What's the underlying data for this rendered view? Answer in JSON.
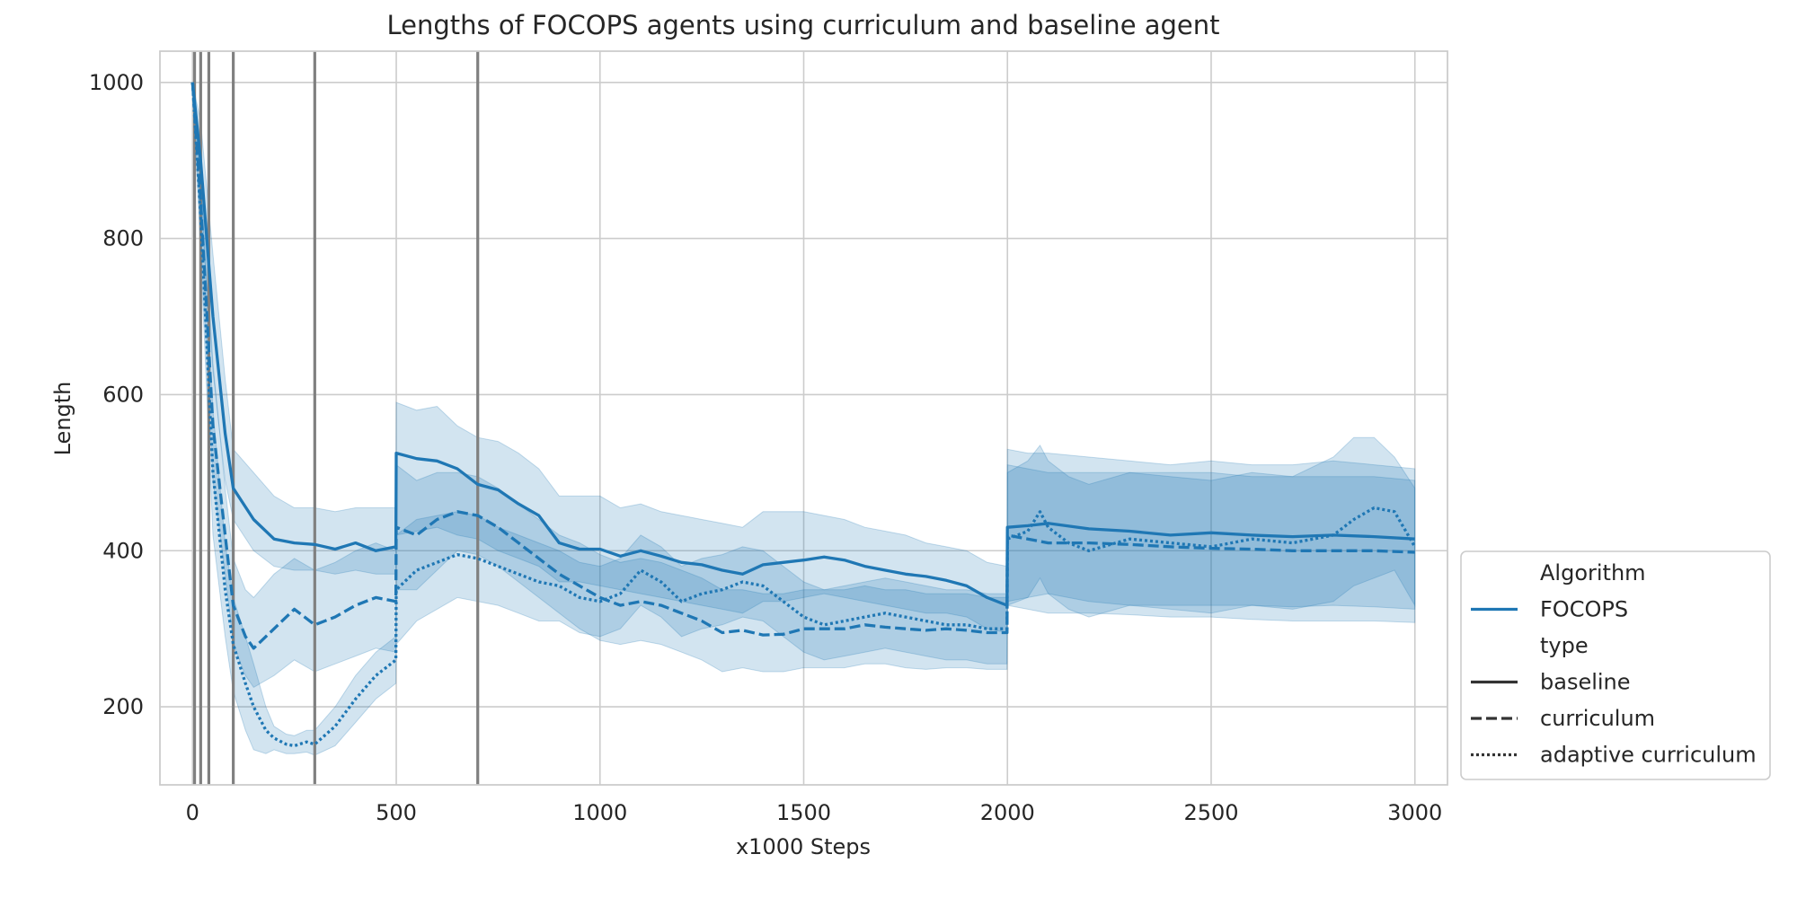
{
  "chart_data": {
    "type": "line",
    "title": "Lengths of FOCOPS agents using curriculum and baseline agent",
    "xlabel": "x1000 Steps",
    "ylabel": "Length",
    "xlim": [
      -80,
      3080
    ],
    "ylim": [
      100,
      1040
    ],
    "xticks": [
      0,
      500,
      1000,
      1500,
      2000,
      2500,
      3000
    ],
    "yticks": [
      200,
      400,
      600,
      800,
      1000
    ],
    "grid": true,
    "color": "#1f77b4",
    "vlines": [
      5,
      20,
      40,
      100,
      300,
      700
    ],
    "vline_color": "#808080",
    "legend": {
      "placement": "right-bottom",
      "entries": [
        {
          "label": "Algorithm",
          "style": "header"
        },
        {
          "label": "FOCOPS",
          "style": "solid-colored"
        },
        {
          "label": "type",
          "style": "header"
        },
        {
          "label": "baseline",
          "style": "solid"
        },
        {
          "label": "curriculum",
          "style": "dashed"
        },
        {
          "label": "adaptive curriculum",
          "style": "dotted"
        }
      ]
    },
    "series": [
      {
        "name": "baseline",
        "dash": "solid",
        "x": [
          0,
          20,
          50,
          80,
          100,
          150,
          200,
          250,
          300,
          350,
          400,
          450,
          499,
          500,
          550,
          600,
          650,
          700,
          750,
          800,
          850,
          900,
          950,
          1000,
          1050,
          1100,
          1150,
          1200,
          1250,
          1300,
          1350,
          1400,
          1450,
          1500,
          1550,
          1600,
          1650,
          1700,
          1750,
          1800,
          1850,
          1900,
          1950,
          1999,
          2000,
          2050,
          2100,
          2200,
          2300,
          2400,
          2500,
          2600,
          2700,
          2800,
          2900,
          3000
        ],
        "y": [
          1000,
          900,
          700,
          550,
          480,
          440,
          415,
          410,
          408,
          402,
          410,
          400,
          405,
          525,
          518,
          515,
          505,
          485,
          478,
          460,
          445,
          410,
          402,
          402,
          393,
          400,
          393,
          385,
          382,
          375,
          370,
          382,
          385,
          388,
          392,
          388,
          380,
          375,
          370,
          367,
          362,
          355,
          340,
          330,
          430,
          432,
          435,
          428,
          425,
          420,
          423,
          420,
          418,
          420,
          418,
          415
        ],
        "upper": [
          1000,
          950,
          780,
          620,
          530,
          500,
          470,
          455,
          455,
          450,
          455,
          455,
          455,
          590,
          580,
          585,
          560,
          545,
          540,
          525,
          505,
          470,
          470,
          470,
          455,
          460,
          450,
          445,
          440,
          435,
          430,
          450,
          450,
          450,
          445,
          440,
          430,
          425,
          420,
          410,
          405,
          400,
          385,
          380,
          530,
          525,
          525,
          520,
          515,
          510,
          515,
          510,
          510,
          515,
          510,
          505
        ],
        "lower": [
          1000,
          850,
          630,
          490,
          440,
          400,
          380,
          375,
          375,
          370,
          375,
          370,
          370,
          420,
          425,
          430,
          420,
          415,
          400,
          390,
          380,
          360,
          360,
          355,
          350,
          345,
          340,
          335,
          330,
          325,
          320,
          335,
          335,
          340,
          345,
          340,
          335,
          330,
          325,
          320,
          320,
          315,
          300,
          295,
          335,
          340,
          345,
          335,
          330,
          330,
          330,
          330,
          328,
          330,
          328,
          325
        ]
      },
      {
        "name": "curriculum",
        "dash": "dashed",
        "x": [
          0,
          20,
          50,
          80,
          100,
          130,
          150,
          200,
          250,
          300,
          350,
          400,
          450,
          499,
          500,
          550,
          600,
          650,
          700,
          750,
          800,
          850,
          900,
          950,
          1000,
          1050,
          1100,
          1150,
          1200,
          1250,
          1300,
          1350,
          1400,
          1450,
          1500,
          1550,
          1600,
          1650,
          1700,
          1750,
          1800,
          1850,
          1900,
          1950,
          1999,
          2000,
          2050,
          2100,
          2200,
          2300,
          2400,
          2500,
          2600,
          2700,
          2800,
          2900,
          3000
        ],
        "y": [
          1000,
          850,
          560,
          420,
          330,
          290,
          275,
          300,
          325,
          305,
          315,
          330,
          340,
          335,
          430,
          420,
          440,
          450,
          445,
          430,
          410,
          390,
          370,
          355,
          340,
          330,
          335,
          330,
          320,
          310,
          295,
          298,
          292,
          293,
          300,
          300,
          300,
          305,
          302,
          300,
          298,
          300,
          298,
          295,
          295,
          420,
          415,
          410,
          410,
          408,
          405,
          403,
          402,
          400,
          400,
          400,
          398
        ],
        "upper": [
          1000,
          900,
          640,
          480,
          390,
          350,
          340,
          370,
          390,
          375,
          385,
          400,
          410,
          400,
          510,
          490,
          500,
          500,
          495,
          480,
          460,
          440,
          420,
          410,
          395,
          385,
          390,
          385,
          375,
          365,
          350,
          350,
          345,
          345,
          350,
          350,
          350,
          355,
          350,
          350,
          345,
          345,
          345,
          340,
          340,
          510,
          505,
          500,
          500,
          500,
          500,
          500,
          495,
          495,
          495,
          495,
          490
        ],
        "lower": [
          1000,
          800,
          490,
          370,
          280,
          240,
          225,
          240,
          260,
          245,
          255,
          265,
          275,
          270,
          350,
          350,
          375,
          400,
          395,
          380,
          360,
          340,
          320,
          300,
          285,
          280,
          285,
          280,
          270,
          260,
          245,
          250,
          245,
          245,
          250,
          250,
          250,
          255,
          255,
          250,
          248,
          250,
          250,
          248,
          248,
          330,
          325,
          320,
          320,
          318,
          315,
          315,
          312,
          310,
          310,
          310,
          308
        ]
      },
      {
        "name": "adaptive curriculum",
        "dash": "dotted",
        "x": [
          0,
          20,
          50,
          80,
          100,
          130,
          150,
          180,
          200,
          230,
          250,
          280,
          300,
          350,
          400,
          450,
          499,
          500,
          550,
          600,
          650,
          700,
          750,
          800,
          850,
          900,
          950,
          1000,
          1050,
          1100,
          1150,
          1200,
          1250,
          1300,
          1350,
          1400,
          1450,
          1500,
          1550,
          1600,
          1650,
          1700,
          1750,
          1800,
          1850,
          1900,
          1950,
          1999,
          2000,
          2050,
          2080,
          2100,
          2150,
          2200,
          2300,
          2400,
          2500,
          2600,
          2700,
          2800,
          2850,
          2900,
          2950,
          3000
        ],
        "y": [
          1000,
          830,
          500,
          350,
          280,
          230,
          200,
          170,
          160,
          152,
          150,
          155,
          152,
          175,
          210,
          240,
          260,
          350,
          375,
          385,
          395,
          390,
          380,
          370,
          360,
          355,
          340,
          335,
          345,
          375,
          360,
          335,
          345,
          350,
          360,
          355,
          335,
          315,
          305,
          310,
          315,
          320,
          315,
          310,
          305,
          305,
          300,
          300,
          415,
          425,
          450,
          430,
          410,
          400,
          415,
          410,
          405,
          415,
          410,
          420,
          440,
          455,
          450,
          405
        ],
        "upper": [
          1000,
          880,
          580,
          410,
          340,
          290,
          255,
          200,
          175,
          165,
          163,
          170,
          170,
          200,
          240,
          270,
          290,
          420,
          440,
          445,
          450,
          445,
          430,
          420,
          410,
          400,
          385,
          380,
          390,
          420,
          405,
          380,
          390,
          395,
          405,
          400,
          380,
          360,
          350,
          355,
          360,
          365,
          360,
          355,
          350,
          350,
          345,
          345,
          500,
          515,
          535,
          515,
          495,
          485,
          500,
          495,
          490,
          500,
          495,
          520,
          545,
          545,
          520,
          480
        ],
        "lower": [
          1000,
          780,
          420,
          290,
          220,
          170,
          145,
          140,
          145,
          140,
          140,
          142,
          138,
          150,
          180,
          210,
          230,
          280,
          310,
          325,
          340,
          335,
          330,
          320,
          310,
          310,
          295,
          290,
          300,
          330,
          315,
          290,
          300,
          305,
          315,
          310,
          290,
          270,
          260,
          265,
          270,
          275,
          270,
          265,
          260,
          260,
          255,
          255,
          330,
          340,
          365,
          345,
          325,
          315,
          330,
          325,
          320,
          330,
          325,
          335,
          355,
          365,
          375,
          330
        ]
      }
    ]
  }
}
